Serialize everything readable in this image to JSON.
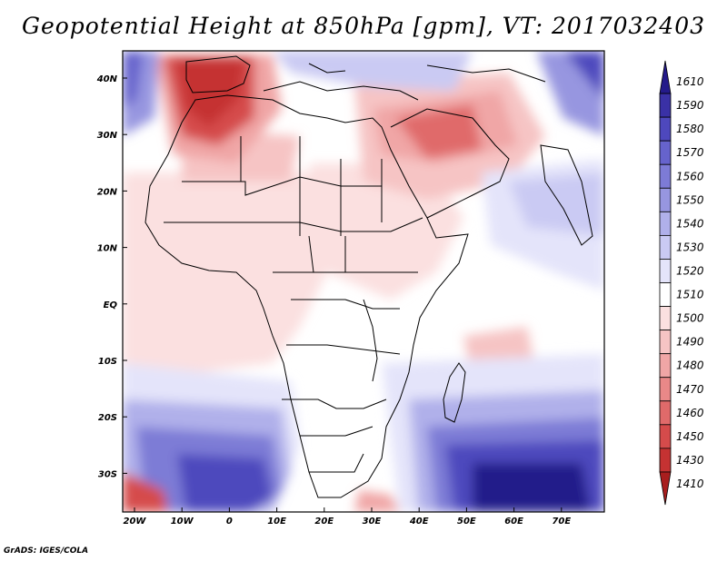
{
  "title": "Geopotential Height at 850hPa [gpm], VT: 2017032403",
  "credit": "GrADS: IGES/COLA",
  "map": {
    "variable": "Geopotential Height at 850hPa",
    "units": "gpm",
    "valid_time": "2017032403",
    "lon_ticks": [
      "20W",
      "10W",
      "0",
      "10E",
      "20E",
      "30E",
      "40E",
      "50E",
      "60E",
      "70E"
    ],
    "lat_ticks": [
      "40N",
      "30N",
      "20N",
      "10N",
      "EQ",
      "10S",
      "20S",
      "30S"
    ]
  },
  "colorbar": {
    "levels": [
      "1610",
      "1590",
      "1580",
      "1570",
      "1560",
      "1550",
      "1540",
      "1530",
      "1520",
      "1510",
      "1500",
      "1490",
      "1480",
      "1470",
      "1460",
      "1450",
      "1430",
      "1410"
    ],
    "colors": [
      "#241a8a",
      "#3a31a6",
      "#4e48bd",
      "#6663cc",
      "#7d7bd6",
      "#9796e0",
      "#b0b0ea",
      "#cacaf3",
      "#e4e4fa",
      "#ffffff",
      "#fbe0e0",
      "#f6c4c4",
      "#f0a6a6",
      "#e98888",
      "#e06a6a",
      "#d54b4b",
      "#c53232",
      "#a81e1e"
    ]
  }
}
